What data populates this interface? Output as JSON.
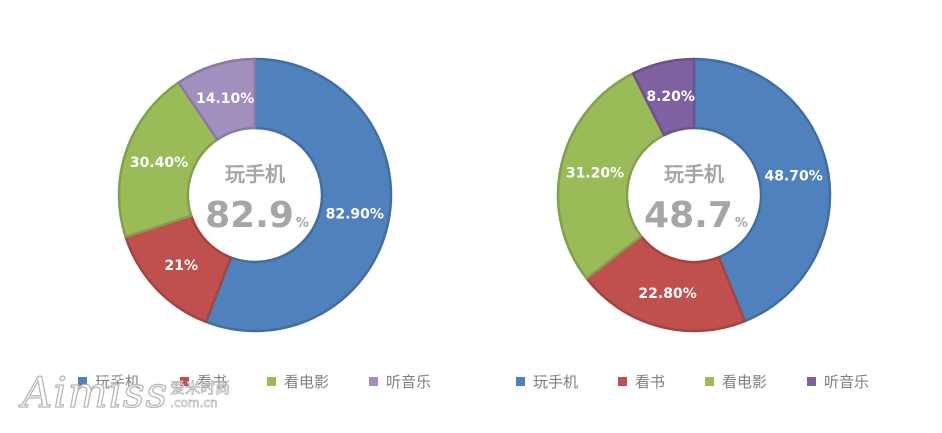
{
  "chart_data": [
    {
      "type": "pie",
      "variant": "donut",
      "categories": [
        "玩手机",
        "看书",
        "看电影",
        "听音乐"
      ],
      "values": [
        82.9,
        21,
        30.4,
        14.1
      ],
      "data_labels": [
        "82.90%",
        "21%",
        "30.40%",
        "14.10%"
      ],
      "colors": [
        "#4f81bd",
        "#c0504d",
        "#9bbb59",
        "#a08fbf"
      ],
      "center_label": "玩手机",
      "center_value": "82.9",
      "center_unit": "%",
      "legend": "bottom"
    },
    {
      "type": "pie",
      "variant": "donut",
      "categories": [
        "玩手机",
        "看书",
        "看电影",
        "听音乐"
      ],
      "values": [
        48.7,
        22.8,
        31.2,
        8.2
      ],
      "data_labels": [
        "48.70%",
        "22.80%",
        "31.20%",
        "8.20%"
      ],
      "colors": [
        "#4f81bd",
        "#c0504d",
        "#9bbb59",
        "#7f61a1"
      ],
      "center_label": "玩手机",
      "center_value": "48.7",
      "center_unit": "%",
      "legend": "bottom"
    }
  ],
  "watermark": {
    "main": "Aimiss",
    "cn": "爱米时尚",
    "url": ".com.cn"
  }
}
